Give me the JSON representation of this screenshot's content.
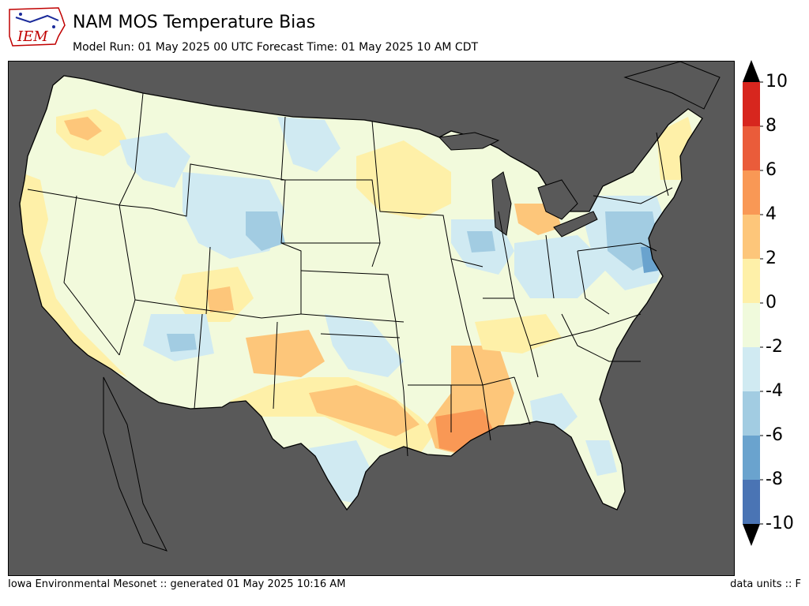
{
  "header": {
    "title": "NAM MOS Temperature Bias",
    "subtitle": "Model Run: 01 May 2025 00 UTC Forecast Time: 01 May 2025 10 AM CDT",
    "logo_text": "IEM"
  },
  "colorbar": {
    "labels": [
      "10",
      "8",
      "6",
      "4",
      "2",
      "0",
      "-2",
      "-4",
      "-6",
      "-8",
      "-10"
    ],
    "colors": [
      "#d7261e",
      "#ea5c3a",
      "#f99855",
      "#fdc67a",
      "#fef0a8",
      "#f0fadc",
      "#d0eaf2",
      "#a2cce2",
      "#6aa3ce",
      "#4a74b4"
    ],
    "extend_min_color": "#000000",
    "extend_max_color": "#000000"
  },
  "map": {
    "background_color": "#595959",
    "land_base_color": "#f2fadc"
  },
  "footer": {
    "left": "Iowa Environmental Mesonet :: generated 01 May 2025 10:16 AM",
    "right": "data units :: F"
  }
}
